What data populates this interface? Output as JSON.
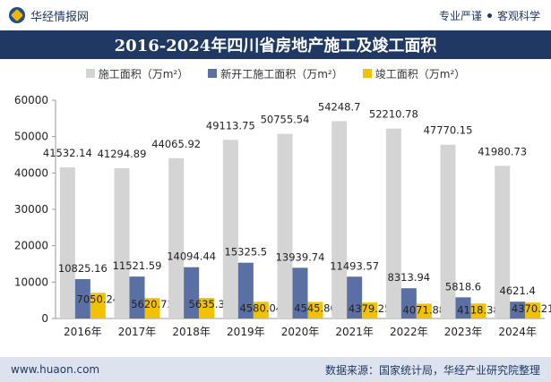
{
  "header": {
    "brand": "华经情报网",
    "tagline_left": "专业严谨",
    "tagline_right": "客观科学"
  },
  "footer": {
    "website": "www.huaon.com",
    "source": "数据来源：国家统计局，华经产业研究院整理"
  },
  "colors": {
    "series1": "#d4d4d4",
    "series2": "#5a6fa3",
    "series3": "#f2c200",
    "title_bg": "#1f3864"
  },
  "chart_data": {
    "type": "bar",
    "title": "2016-2024年四川省房地产施工及竣工面积",
    "categories": [
      "2016年",
      "2017年",
      "2018年",
      "2019年",
      "2020年",
      "2021年",
      "2022年",
      "2023年",
      "2024年"
    ],
    "series": [
      {
        "name": "施工面积（万m²）",
        "values": [
          41532.14,
          41294.89,
          44065.92,
          49113.75,
          50755.54,
          54248.7,
          52210.78,
          47770.15,
          41980.73
        ]
      },
      {
        "name": "新开工施工面积（万m²）",
        "values": [
          10825.16,
          11521.59,
          14094.44,
          15325.5,
          13939.74,
          11493.57,
          8313.94,
          5818.6,
          4621.4
        ]
      },
      {
        "name": "竣工面积（万m²）",
        "values": [
          7050.24,
          5620.73,
          5635.3,
          4580.04,
          4545.86,
          4379.25,
          4071.88,
          4118.38,
          4370.21
        ]
      }
    ],
    "ylim": [
      0,
      60000
    ],
    "yticks": [
      0,
      10000,
      20000,
      30000,
      40000,
      50000,
      60000
    ],
    "legend_position": "top-center",
    "grid": false
  }
}
